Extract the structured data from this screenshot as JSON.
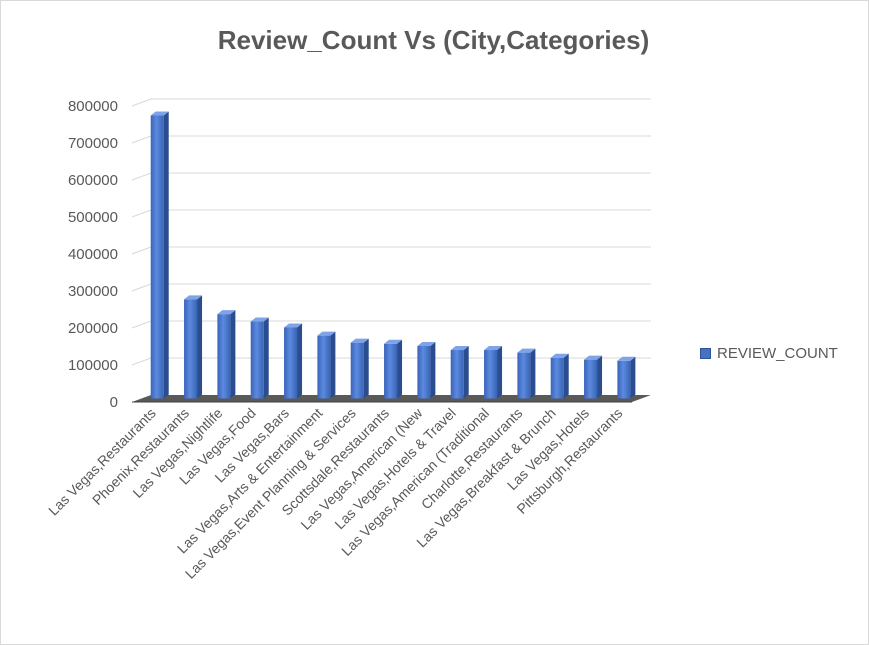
{
  "chart_data": {
    "type": "bar",
    "title": "Review_Count Vs (City,Categories)",
    "xlabel": "",
    "ylabel": "",
    "categories": [
      "Las Vegas,Restaurants",
      "Phoenix,Restaurants",
      "Las Vegas,Nightlife",
      "Las Vegas,Food",
      "Las Vegas,Bars",
      "Las Vegas,Arts & Entertainment",
      "Las Vegas,Event Planning & Services",
      "Scottsdale,Restaurants",
      "Las Vegas,American (New",
      "Las Vegas,Hotels & Travel",
      "Las Vegas,American (Traditional",
      "Charlotte,Restaurants",
      "Las Vegas,Breakfast & Brunch",
      "Las Vegas,Hotels",
      "Pittsburgh,Restaurants"
    ],
    "series": [
      {
        "name": "REVIEW_COUNT",
        "color": "#4472c4",
        "values": [
          765000,
          268000,
          228000,
          208000,
          192000,
          170000,
          151000,
          148000,
          142000,
          131000,
          131000,
          124000,
          110000,
          105000,
          102000
        ]
      }
    ],
    "ylim": [
      0,
      800000
    ],
    "yticks": [
      "0",
      "100000",
      "200000",
      "300000",
      "400000",
      "500000",
      "600000",
      "700000",
      "800000"
    ],
    "grid": true,
    "legend_position": "right",
    "style": "3d-column"
  }
}
